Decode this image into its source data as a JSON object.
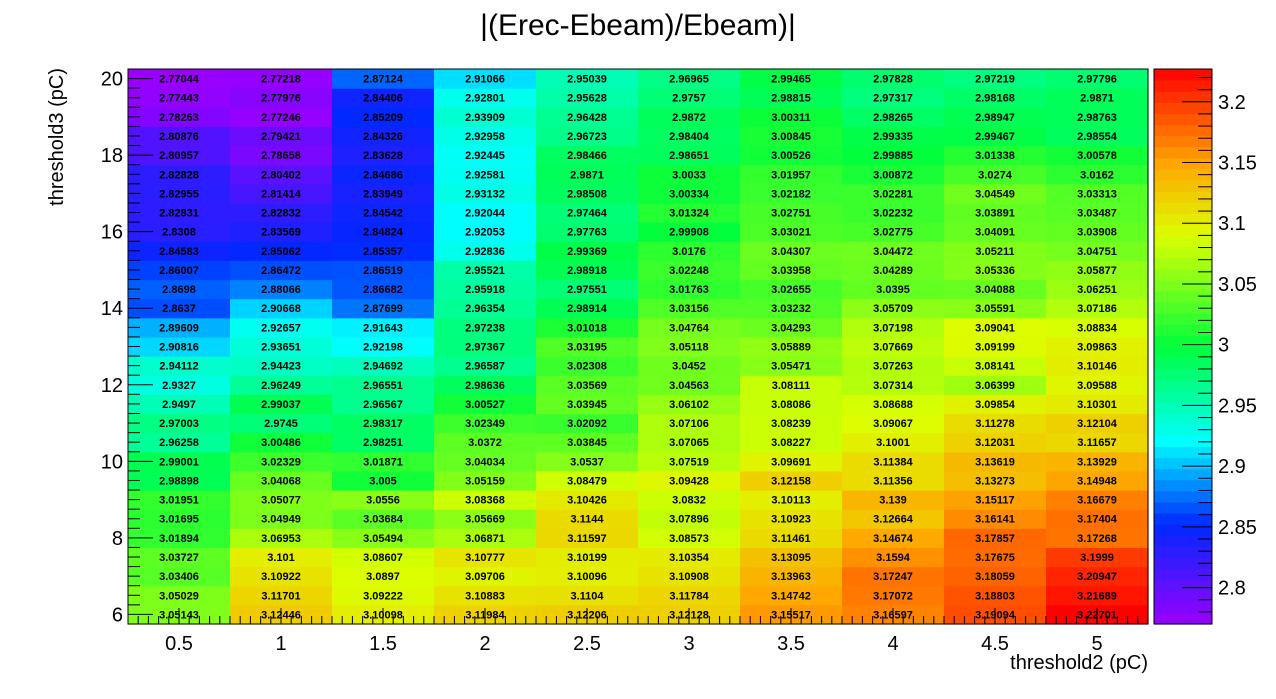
{
  "chart_data": {
    "type": "heatmap",
    "title": "|(Erec-Ebeam)/Ebeam)|",
    "xlabel": "threshold2 (pC)",
    "ylabel": "threshold3 (pC)",
    "x_centers": [
      0.5,
      1,
      1.5,
      2,
      2.5,
      3,
      3.5,
      4,
      4.5,
      5
    ],
    "x_edges": [
      0.25,
      5.25
    ],
    "y_centers": [
      6,
      6.5,
      7,
      7.5,
      8,
      8.5,
      9,
      9.5,
      10,
      10.5,
      11,
      11.5,
      12,
      12.5,
      13,
      13.5,
      14,
      14.5,
      15,
      15.5,
      16,
      16.5,
      17,
      17.5,
      18,
      18.5,
      19,
      19.5,
      20
    ],
    "y_edges": [
      5.75,
      20.25
    ],
    "x_tick_labels": [
      "0.5",
      "1",
      "1.5",
      "2",
      "2.5",
      "3",
      "3.5",
      "4",
      "4.5",
      "5"
    ],
    "y_ticks": [
      6,
      8,
      10,
      12,
      14,
      16,
      18,
      20
    ],
    "y_tick_labels": [
      "6",
      "8",
      "10",
      "12",
      "14",
      "16",
      "18",
      "20"
    ],
    "zlim": [
      2.77,
      3.227
    ],
    "colorbar_ticks": [
      2.8,
      2.85,
      2.9,
      2.95,
      3,
      3.05,
      3.1,
      3.15,
      3.2
    ],
    "colorbar_tick_labels": [
      "2.8",
      "2.85",
      "2.9",
      "2.95",
      "3",
      "3.05",
      "3.1",
      "3.15",
      "3.2"
    ],
    "values": [
      [
        "3.05143",
        "3.12446",
        "3.10098",
        "3.11984",
        "3.12206",
        "3.12128",
        "3.15517",
        "3.16597",
        "3.19094",
        "3.22701"
      ],
      [
        "3.05029",
        "3.11701",
        "3.09222",
        "3.10883",
        "3.1104",
        "3.11784",
        "3.14742",
        "3.17072",
        "3.18803",
        "3.21689"
      ],
      [
        "3.03406",
        "3.10922",
        "3.0897",
        "3.09706",
        "3.10096",
        "3.10908",
        "3.13963",
        "3.17247",
        "3.18059",
        "3.20947"
      ],
      [
        "3.03727",
        "3.101",
        "3.08607",
        "3.10777",
        "3.10199",
        "3.10354",
        "3.13095",
        "3.1594",
        "3.17675",
        "3.1999"
      ],
      [
        "3.01894",
        "3.06953",
        "3.05494",
        "3.06871",
        "3.11597",
        "3.08573",
        "3.11461",
        "3.14674",
        "3.17857",
        "3.17268"
      ],
      [
        "3.01695",
        "3.04949",
        "3.03684",
        "3.05669",
        "3.1144",
        "3.07896",
        "3.10923",
        "3.12664",
        "3.16141",
        "3.17404"
      ],
      [
        "3.01951",
        "3.05077",
        "3.0556",
        "3.08368",
        "3.10426",
        "3.0832",
        "3.10113",
        "3.139",
        "3.15117",
        "3.16679"
      ],
      [
        "2.98898",
        "3.04068",
        "3.005",
        "3.05159",
        "3.08479",
        "3.09428",
        "3.12158",
        "3.11356",
        "3.13273",
        "3.14948"
      ],
      [
        "2.99001",
        "3.02329",
        "3.01871",
        "3.04034",
        "3.0537",
        "3.07519",
        "3.09691",
        "3.11384",
        "3.13619",
        "3.13929"
      ],
      [
        "2.96258",
        "3.00486",
        "2.98251",
        "3.0372",
        "3.03845",
        "3.07065",
        "3.08227",
        "3.1001",
        "3.12031",
        "3.11657"
      ],
      [
        "2.97003",
        "2.9745",
        "2.98317",
        "3.02349",
        "3.02092",
        "3.07106",
        "3.08239",
        "3.09067",
        "3.11278",
        "3.12104"
      ],
      [
        "2.9497",
        "2.99037",
        "2.96567",
        "3.00527",
        "3.03945",
        "3.06102",
        "3.08086",
        "3.08688",
        "3.09854",
        "3.10301"
      ],
      [
        "2.9327",
        "2.96249",
        "2.96551",
        "2.98636",
        "3.03569",
        "3.04563",
        "3.08111",
        "3.07314",
        "3.06399",
        "3.09588"
      ],
      [
        "2.94112",
        "2.94423",
        "2.94692",
        "2.96587",
        "3.02308",
        "3.0452",
        "3.05471",
        "3.07263",
        "3.08141",
        "3.10146"
      ],
      [
        "2.90816",
        "2.93651",
        "2.92198",
        "2.97367",
        "3.03195",
        "3.05118",
        "3.05889",
        "3.07669",
        "3.09199",
        "3.09863"
      ],
      [
        "2.89609",
        "2.92657",
        "2.91643",
        "2.97238",
        "3.01018",
        "3.04764",
        "3.04293",
        "3.07198",
        "3.09041",
        "3.08834"
      ],
      [
        "2.8637",
        "2.90668",
        "2.87699",
        "2.96354",
        "2.98914",
        "3.03156",
        "3.03232",
        "3.05709",
        "3.05591",
        "3.07186"
      ],
      [
        "2.8698",
        "2.88066",
        "2.86682",
        "2.95918",
        "2.97551",
        "3.01763",
        "3.02655",
        "3.0395",
        "3.04088",
        "3.06251"
      ],
      [
        "2.86007",
        "2.86472",
        "2.86519",
        "2.95521",
        "2.98918",
        "3.02248",
        "3.03958",
        "3.04289",
        "3.05336",
        "3.05877"
      ],
      [
        "2.84583",
        "2.85062",
        "2.85357",
        "2.92836",
        "2.99369",
        "3.0176",
        "3.04307",
        "3.04472",
        "3.05211",
        "3.04751"
      ],
      [
        "2.8308",
        "2.83569",
        "2.84824",
        "2.92053",
        "2.97763",
        "2.99908",
        "3.03021",
        "3.02775",
        "3.04091",
        "3.03908"
      ],
      [
        "2.82831",
        "2.82832",
        "2.84542",
        "2.92044",
        "2.97464",
        "3.01324",
        "3.02751",
        "3.02232",
        "3.03891",
        "3.03487"
      ],
      [
        "2.82955",
        "2.81414",
        "2.83949",
        "2.93132",
        "2.98508",
        "3.00334",
        "3.02182",
        "3.02281",
        "3.04549",
        "3.03313"
      ],
      [
        "2.82828",
        "2.80402",
        "2.84686",
        "2.92581",
        "2.9871",
        "3.0033",
        "3.01957",
        "3.00872",
        "3.0274",
        "3.0162"
      ],
      [
        "2.80957",
        "2.78658",
        "2.83628",
        "2.92445",
        "2.98466",
        "2.98651",
        "3.00526",
        "2.99885",
        "3.01338",
        "3.00578"
      ],
      [
        "2.80876",
        "2.79421",
        "2.84326",
        "2.92958",
        "2.96723",
        "2.98404",
        "3.00845",
        "2.99335",
        "2.99467",
        "2.98554"
      ],
      [
        "2.78263",
        "2.77246",
        "2.85209",
        "2.93909",
        "2.96428",
        "2.9872",
        "3.00311",
        "2.98265",
        "2.98947",
        "2.98763"
      ],
      [
        "2.77443",
        "2.77976",
        "2.84406",
        "2.92801",
        "2.95628",
        "2.9757",
        "2.98815",
        "2.97317",
        "2.98168",
        "2.9871"
      ],
      [
        "2.77044",
        "2.77218",
        "2.87124",
        "2.91066",
        "2.95039",
        "2.96965",
        "2.99465",
        "2.97828",
        "2.97219",
        "2.97796"
      ]
    ],
    "colormap": "rainbow",
    "grid": false,
    "legend": "colorbar-right"
  }
}
